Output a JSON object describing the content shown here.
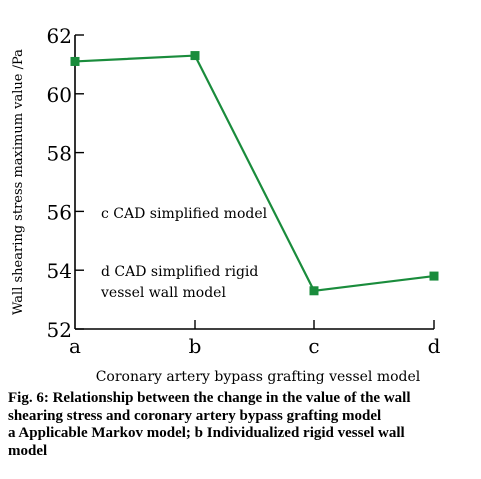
{
  "chart_data": {
    "type": "line",
    "categories": [
      "a",
      "b",
      "c",
      "d"
    ],
    "values": [
      61.1,
      61.3,
      53.3,
      53.8
    ],
    "ylabel": "Wall shearing stress maximum value /Pa",
    "xlabel": "Coronary artery bypass grafting vessel model",
    "ylim": [
      52,
      62
    ],
    "yticks": [
      52,
      54,
      56,
      58,
      60,
      62
    ],
    "grid": false,
    "series_color": "#1a8c3c",
    "annotations": [
      "c CAD simplified model",
      "d CAD simplified rigid",
      "vessel wall model"
    ]
  },
  "caption": {
    "line1": "Fig. 6: Relationship between the change in the value of the wall",
    "line2": "shearing stress and coronary artery bypass grafting model",
    "line3": "a Applicable Markov model; b Individualized rigid vessel wall",
    "line4": "model"
  }
}
